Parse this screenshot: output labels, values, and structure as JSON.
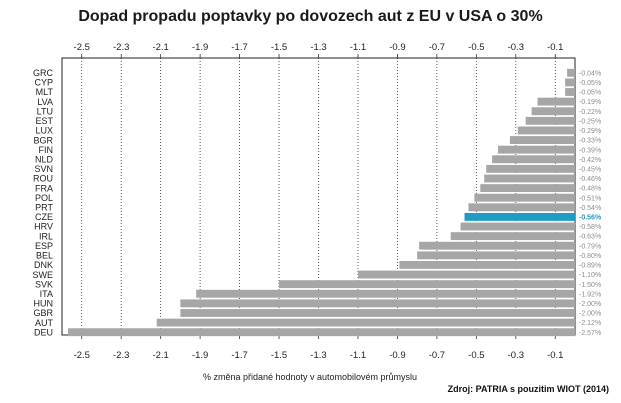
{
  "chart_data": {
    "type": "bar",
    "orientation": "horizontal",
    "title": "Dopad propadu poptavky po dovozech aut z EU v USA o 30%",
    "xlabel": "% změna přidané hodnoty v automobilovém průmyslu",
    "source": "Zdroj: PATRIA s pouzitim WIOT (2014)",
    "xlim": [
      -2.6,
      0.0
    ],
    "xticks": [
      -2.5,
      -2.3,
      -2.1,
      -1.9,
      -1.7,
      -1.5,
      -1.3,
      -1.1,
      -0.9,
      -0.7,
      -0.5,
      -0.3,
      -0.1
    ],
    "grid": "vertical dotted",
    "colors": {
      "bar": "#a6a6a6",
      "highlight": "#1f9bc4",
      "label": "#8c8c8c"
    },
    "highlight_category": "CZE",
    "categories": [
      "GRC",
      "CYP",
      "MLT",
      "LVA",
      "LTU",
      "EST",
      "LUX",
      "BGR",
      "FIN",
      "NLD",
      "SVN",
      "ROU",
      "FRA",
      "POL",
      "PRT",
      "CZE",
      "HRV",
      "IRL",
      "ESP",
      "BEL",
      "DNK",
      "SWE",
      "SVK",
      "ITA",
      "HUN",
      "GBR",
      "AUT",
      "DEU"
    ],
    "values": [
      -0.04,
      -0.05,
      -0.05,
      -0.19,
      -0.22,
      -0.25,
      -0.29,
      -0.33,
      -0.39,
      -0.42,
      -0.45,
      -0.46,
      -0.48,
      -0.51,
      -0.54,
      -0.56,
      -0.58,
      -0.63,
      -0.79,
      -0.8,
      -0.89,
      -1.1,
      -1.5,
      -1.92,
      -2.0,
      -2.0,
      -2.12,
      -2.57
    ],
    "value_labels": [
      "-0.04%",
      "-0.05%",
      "-0.05%",
      "-0.19%",
      "-0.22%",
      "-0.25%",
      "-0.29%",
      "-0.33%",
      "-0.39%",
      "-0.42%",
      "-0.45%",
      "-0.46%",
      "-0.48%",
      "-0.51%",
      "-0.54%",
      "-0.56%",
      "-0.58%",
      "-0.63%",
      "-0.79%",
      "-0.80%",
      "-0.89%",
      "-1.10%",
      "-1.50%",
      "-1.92%",
      "-2.00%",
      "-2.00%",
      "-2.12%",
      "-2.57%"
    ]
  }
}
